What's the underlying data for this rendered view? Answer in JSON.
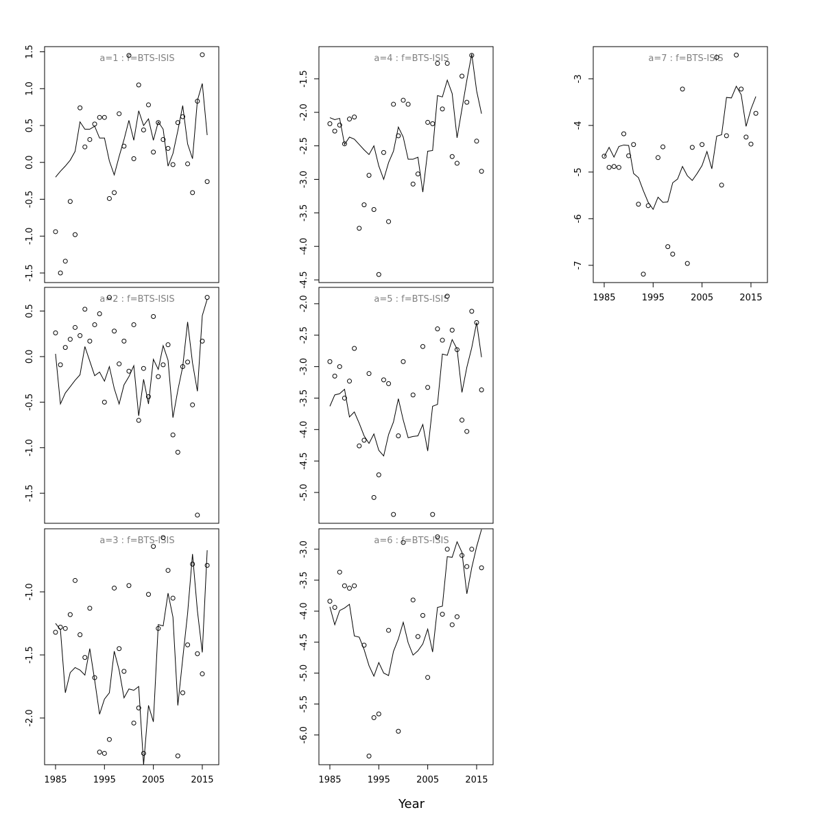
{
  "chart_data": [
    {
      "type": "scatter",
      "title": "a=1  :  f=BTS-ISIS",
      "x": [
        1985,
        1986,
        1987,
        1988,
        1989,
        1990,
        1991,
        1992,
        1993,
        1994,
        1995,
        1996,
        1997,
        1998,
        1999,
        2000,
        2001,
        2002,
        2003,
        2004,
        2005,
        2006,
        2007,
        2008,
        2009,
        2010,
        2011,
        2012,
        2013,
        2014,
        2015,
        2016
      ],
      "series": [
        {
          "mode": "markers",
          "color": "#000000",
          "values": [
            -0.94,
            -1.5,
            -1.34,
            -0.53,
            -0.98,
            0.74,
            0.21,
            0.31,
            0.52,
            0.61,
            0.61,
            -0.49,
            -0.41,
            0.66,
            0.22,
            1.45,
            0.05,
            1.05,
            0.44,
            0.78,
            0.14,
            0.54,
            0.31,
            0.19,
            -0.03,
            0.54,
            0.62,
            -0.02,
            -0.41,
            0.83,
            1.46,
            -0.26
          ]
        },
        {
          "mode": "lines",
          "color": "#000000",
          "values": [
            -0.2,
            -0.12,
            -0.05,
            0.03,
            0.15,
            0.55,
            0.45,
            0.45,
            0.49,
            0.33,
            0.33,
            0.02,
            -0.17,
            0.08,
            0.31,
            0.57,
            0.3,
            0.7,
            0.5,
            0.59,
            0.3,
            0.55,
            0.45,
            -0.05,
            0.12,
            0.43,
            0.77,
            0.25,
            0.05,
            0.84,
            1.07,
            0.37
          ]
        }
      ],
      "xlim": [
        1982.76,
        2018.37
      ],
      "ylim": [
        -1.63,
        1.57
      ],
      "yticks": [
        {
          "value": -1.5,
          "label": "-1.5"
        },
        {
          "value": -1,
          "label": "-1.0"
        },
        {
          "value": -0.5,
          "label": "-0.5"
        },
        {
          "value": 0,
          "label": "0.0"
        },
        {
          "value": 0.5,
          "label": "0.5"
        },
        {
          "value": 1,
          "label": "1.0"
        },
        {
          "value": 1.5,
          "label": "1.5"
        }
      ]
    },
    {
      "type": "scatter",
      "title": "a=2  :  f=BTS-ISIS",
      "x": [
        1985,
        1986,
        1987,
        1988,
        1989,
        1990,
        1991,
        1992,
        1993,
        1994,
        1995,
        1996,
        1997,
        1998,
        1999,
        2000,
        2001,
        2002,
        2003,
        2004,
        2005,
        2006,
        2007,
        2008,
        2009,
        2010,
        2011,
        2012,
        2013,
        2014,
        2015,
        2016
      ],
      "series": [
        {
          "mode": "markers",
          "color": "#000000",
          "values": [
            0.26,
            -0.09,
            0.1,
            0.19,
            0.32,
            0.23,
            0.52,
            0.17,
            0.35,
            0.47,
            -0.5,
            0.65,
            0.28,
            -0.08,
            0.17,
            -0.16,
            0.35,
            -0.7,
            -0.13,
            -0.44,
            0.44,
            -0.22,
            -0.09,
            0.13,
            -0.86,
            -1.05,
            -0.11,
            -0.06,
            -0.53,
            -1.74,
            0.17,
            0.65
          ]
        },
        {
          "mode": "lines",
          "color": "#000000",
          "values": [
            0.03,
            -0.52,
            -0.4,
            -0.33,
            -0.26,
            -0.2,
            0.11,
            -0.05,
            -0.21,
            -0.17,
            -0.27,
            -0.11,
            -0.35,
            -0.52,
            -0.31,
            -0.22,
            -0.1,
            -0.65,
            -0.25,
            -0.52,
            -0.03,
            -0.14,
            0.12,
            -0.04,
            -0.67,
            -0.37,
            -0.11,
            0.38,
            -0.07,
            -0.38,
            0.45,
            0.63
          ]
        }
      ],
      "xlim": [
        1982.76,
        2018.37
      ],
      "ylim": [
        -1.83,
        0.76
      ],
      "yticks": [
        {
          "value": -1.5,
          "label": "-1.5"
        },
        {
          "value": -1,
          "label": "-1.0"
        },
        {
          "value": -0.5,
          "label": "-0.5"
        },
        {
          "value": 0,
          "label": "0.0"
        },
        {
          "value": 0.5,
          "label": "0.5"
        }
      ]
    },
    {
      "type": "scatter",
      "title": "a=3  :  f=BTS-ISIS",
      "x": [
        1985,
        1986,
        1987,
        1988,
        1989,
        1990,
        1991,
        1992,
        1993,
        1994,
        1995,
        1996,
        1997,
        1998,
        1999,
        2000,
        2001,
        2002,
        2003,
        2004,
        2005,
        2006,
        2007,
        2008,
        2009,
        2010,
        2011,
        2012,
        2013,
        2014,
        2015,
        2016
      ],
      "series": [
        {
          "mode": "markers",
          "color": "#000000",
          "values": [
            -1.32,
            -1.28,
            -1.29,
            -1.18,
            -0.91,
            -1.34,
            -1.52,
            -1.13,
            -1.68,
            -2.27,
            -2.28,
            -2.17,
            -0.97,
            -1.45,
            -1.63,
            -0.95,
            -2.04,
            -1.92,
            -2.28,
            -1.02,
            -0.64,
            -1.29,
            -0.57,
            -0.83,
            -1.05,
            -2.3,
            -1.8,
            -1.42,
            -0.78,
            -1.49,
            -1.65,
            -0.79
          ]
        },
        {
          "mode": "lines",
          "color": "#000000",
          "values": [
            -1.25,
            -1.3,
            -1.8,
            -1.64,
            -1.6,
            -1.62,
            -1.66,
            -1.45,
            -1.7,
            -1.97,
            -1.85,
            -1.8,
            -1.47,
            -1.62,
            -1.84,
            -1.77,
            -1.78,
            -1.75,
            -2.37,
            -1.9,
            -2.03,
            -1.26,
            -1.27,
            -1.01,
            -1.2,
            -1.9,
            -1.53,
            -1.17,
            -0.7,
            -1.15,
            -1.48,
            -0.67
          ]
        }
      ],
      "xlim": [
        1982.76,
        2018.37
      ],
      "ylim": [
        -2.37,
        -0.5
      ],
      "yticks": [
        {
          "value": -2,
          "label": "-2.0"
        },
        -1.5,
        {
          "value": -1,
          "label": "-1.0"
        }
      ],
      "xticks": [
        1985,
        1995,
        2005,
        2015
      ]
    },
    {
      "type": "scatter",
      "title": "a=4  :  f=BTS-ISIS",
      "x": [
        1985,
        1986,
        1987,
        1988,
        1989,
        1990,
        1991,
        1992,
        1993,
        1994,
        1995,
        1996,
        1997,
        1998,
        1999,
        2000,
        2001,
        2002,
        2003,
        2004,
        2005,
        2006,
        2007,
        2008,
        2009,
        2010,
        2011,
        2012,
        2013,
        2014,
        2015,
        2016
      ],
      "series": [
        {
          "mode": "markers",
          "color": "#000000",
          "values": [
            -2.17,
            -2.28,
            -2.19,
            -2.47,
            -2.1,
            -2.07,
            -3.73,
            -3.38,
            -2.94,
            -3.45,
            -4.42,
            -2.6,
            -3.63,
            -1.88,
            -2.35,
            -1.82,
            -1.88,
            -3.07,
            -2.92,
            null,
            -2.15,
            -2.17,
            -1.27,
            -1.95,
            -1.27,
            -2.66,
            -2.76,
            -1.46,
            -1.85,
            -1.15,
            -2.43,
            -2.88
          ]
        },
        {
          "mode": "lines",
          "color": "#000000",
          "values": [
            -2.08,
            -2.11,
            -2.09,
            -2.48,
            -2.37,
            -2.4,
            -2.48,
            -2.56,
            -2.63,
            -2.5,
            -2.8,
            -3.0,
            -2.75,
            -2.58,
            -2.22,
            -2.37,
            -2.7,
            -2.7,
            -2.67,
            -3.19,
            -2.58,
            -2.57,
            -1.75,
            -1.77,
            -1.52,
            -1.72,
            -2.38,
            -1.95,
            -1.52,
            -1.13,
            -1.68,
            -2.02
          ]
        }
      ],
      "xlim": [
        1982.76,
        2018.37
      ],
      "ylim": [
        -4.54,
        -1.02
      ],
      "yticks": [
        -4.5,
        {
          "value": -4,
          "label": "-4.0"
        },
        -3.5,
        {
          "value": -3,
          "label": "-3.0"
        },
        -2.5,
        {
          "value": -2,
          "label": "-2.0"
        },
        -1.5
      ]
    },
    {
      "type": "scatter",
      "title": "a=5  :  f=BTS-ISIS",
      "x": [
        1985,
        1986,
        1987,
        1988,
        1989,
        1990,
        1991,
        1992,
        1993,
        1994,
        1995,
        1996,
        1997,
        1998,
        1999,
        2000,
        2001,
        2002,
        2003,
        2004,
        2005,
        2006,
        2007,
        2008,
        2009,
        2010,
        2011,
        2012,
        2013,
        2014,
        2015,
        2016
      ],
      "series": [
        {
          "mode": "markers",
          "color": "#000000",
          "values": [
            -2.92,
            -3.15,
            -3.0,
            -3.5,
            -3.23,
            -2.71,
            -4.26,
            -4.17,
            -3.11,
            -5.08,
            -4.72,
            -3.21,
            -3.27,
            -5.35,
            -4.1,
            -2.92,
            null,
            -3.45,
            null,
            -2.68,
            -3.33,
            -5.35,
            -2.4,
            -2.58,
            -1.88,
            -2.42,
            -2.73,
            -3.85,
            -4.03,
            -2.12,
            -2.3,
            -3.37
          ]
        },
        {
          "mode": "lines",
          "color": "#000000",
          "values": [
            -3.63,
            -3.45,
            -3.43,
            -3.36,
            -3.8,
            -3.72,
            -3.9,
            -4.1,
            -4.22,
            -4.07,
            -4.33,
            -4.42,
            -4.08,
            -3.88,
            -3.51,
            -3.85,
            -4.13,
            -4.11,
            -4.1,
            -3.92,
            -4.34,
            -3.63,
            -3.6,
            -2.8,
            -2.82,
            -2.57,
            -2.72,
            -3.41,
            -3.01,
            -2.7,
            -2.3,
            -2.85
          ]
        }
      ],
      "xlim": [
        1982.76,
        2018.37
      ],
      "ylim": [
        -5.49,
        -1.74
      ],
      "yticks": [
        {
          "value": -5,
          "label": "-5.0"
        },
        -4.5,
        {
          "value": -4,
          "label": "-4.0"
        },
        -3.5,
        {
          "value": -3,
          "label": "-3.0"
        },
        -2.5,
        {
          "value": -2,
          "label": "-2.0"
        }
      ]
    },
    {
      "type": "scatter",
      "title": "a=6  :  f=BTS-ISIS",
      "xlabel": "Year",
      "x": [
        1985,
        1986,
        1987,
        1988,
        1989,
        1990,
        1991,
        1992,
        1993,
        1994,
        1995,
        1996,
        1997,
        1998,
        1999,
        2000,
        2001,
        2002,
        2003,
        2004,
        2005,
        2006,
        2007,
        2008,
        2009,
        2010,
        2011,
        2012,
        2013,
        2014,
        2015,
        2016
      ],
      "series": [
        {
          "mode": "markers",
          "color": "#000000",
          "values": [
            -3.84,
            -3.94,
            -3.37,
            -3.59,
            -3.63,
            -3.59,
            null,
            -4.55,
            -6.34,
            -5.72,
            -5.66,
            null,
            -4.31,
            null,
            -5.94,
            -2.89,
            null,
            -3.82,
            -4.41,
            -4.07,
            -5.07,
            null,
            -2.8,
            -4.05,
            -3.0,
            -4.22,
            -4.09,
            -3.1,
            -3.28,
            -3.0,
            null,
            -3.3
          ]
        },
        {
          "mode": "lines",
          "color": "#000000",
          "values": [
            -3.93,
            -4.22,
            -3.99,
            -3.95,
            -3.89,
            -4.4,
            -4.42,
            -4.62,
            -4.88,
            -5.05,
            -4.83,
            -5.0,
            -5.04,
            -4.65,
            -4.45,
            -4.18,
            -4.51,
            -4.71,
            -4.64,
            -4.53,
            -4.29,
            -4.66,
            -3.94,
            -3.92,
            -3.12,
            -3.13,
            -2.88,
            -3.05,
            -3.72,
            -3.3,
            -2.96,
            -2.68
          ]
        }
      ],
      "xlim": [
        1982.76,
        2018.37
      ],
      "ylim": [
        -6.48,
        -2.67
      ],
      "yticks": [
        {
          "value": -6,
          "label": "-6.0"
        },
        -5.5,
        {
          "value": -5,
          "label": "-5.0"
        },
        -4.5,
        {
          "value": -4,
          "label": "-4.0"
        },
        -3.5,
        {
          "value": -3,
          "label": "-3.0"
        }
      ],
      "xticks": [
        1985,
        1995,
        2005,
        2015
      ]
    },
    {
      "type": "scatter",
      "title": "a=7  :  f=BTS-ISIS",
      "x": [
        1985,
        1986,
        1987,
        1988,
        1989,
        1990,
        1991,
        1992,
        1993,
        1994,
        1995,
        1996,
        1997,
        1998,
        1999,
        2000,
        2001,
        2002,
        2003,
        2004,
        2005,
        2006,
        2007,
        2008,
        2009,
        2010,
        2011,
        2012,
        2013,
        2014,
        2015,
        2016
      ],
      "series": [
        {
          "mode": "markers",
          "color": "#000000",
          "values": [
            -4.66,
            -4.9,
            -4.88,
            -4.9,
            -4.18,
            -4.65,
            -4.41,
            -5.69,
            -7.19,
            -5.72,
            null,
            -4.69,
            -4.46,
            -6.6,
            -6.76,
            null,
            -3.22,
            -6.96,
            -4.47,
            null,
            -4.41,
            null,
            null,
            -2.54,
            -5.28,
            -4.22,
            null,
            -2.49,
            -3.22,
            -4.25,
            -4.4,
            -3.74
          ]
        },
        {
          "mode": "lines",
          "color": "#000000",
          "values": [
            -4.67,
            -4.47,
            -4.68,
            -4.45,
            -4.42,
            -4.43,
            -5.03,
            -5.12,
            -5.4,
            -5.65,
            -5.8,
            -5.54,
            -5.65,
            -5.64,
            -5.23,
            -5.15,
            -4.88,
            -5.08,
            -5.18,
            -5.03,
            -4.86,
            -4.56,
            -4.93,
            -4.23,
            -4.2,
            -3.4,
            -3.41,
            -3.16,
            -3.34,
            -4.02,
            -3.65,
            -3.38
          ]
        }
      ],
      "xlim": [
        1982.76,
        2018.37
      ],
      "ylim": [
        -7.37,
        -2.31
      ],
      "yticks": [
        -7,
        -6,
        -5,
        -4,
        -3
      ],
      "xticks": [
        1985,
        1995,
        2005,
        2015
      ]
    }
  ]
}
